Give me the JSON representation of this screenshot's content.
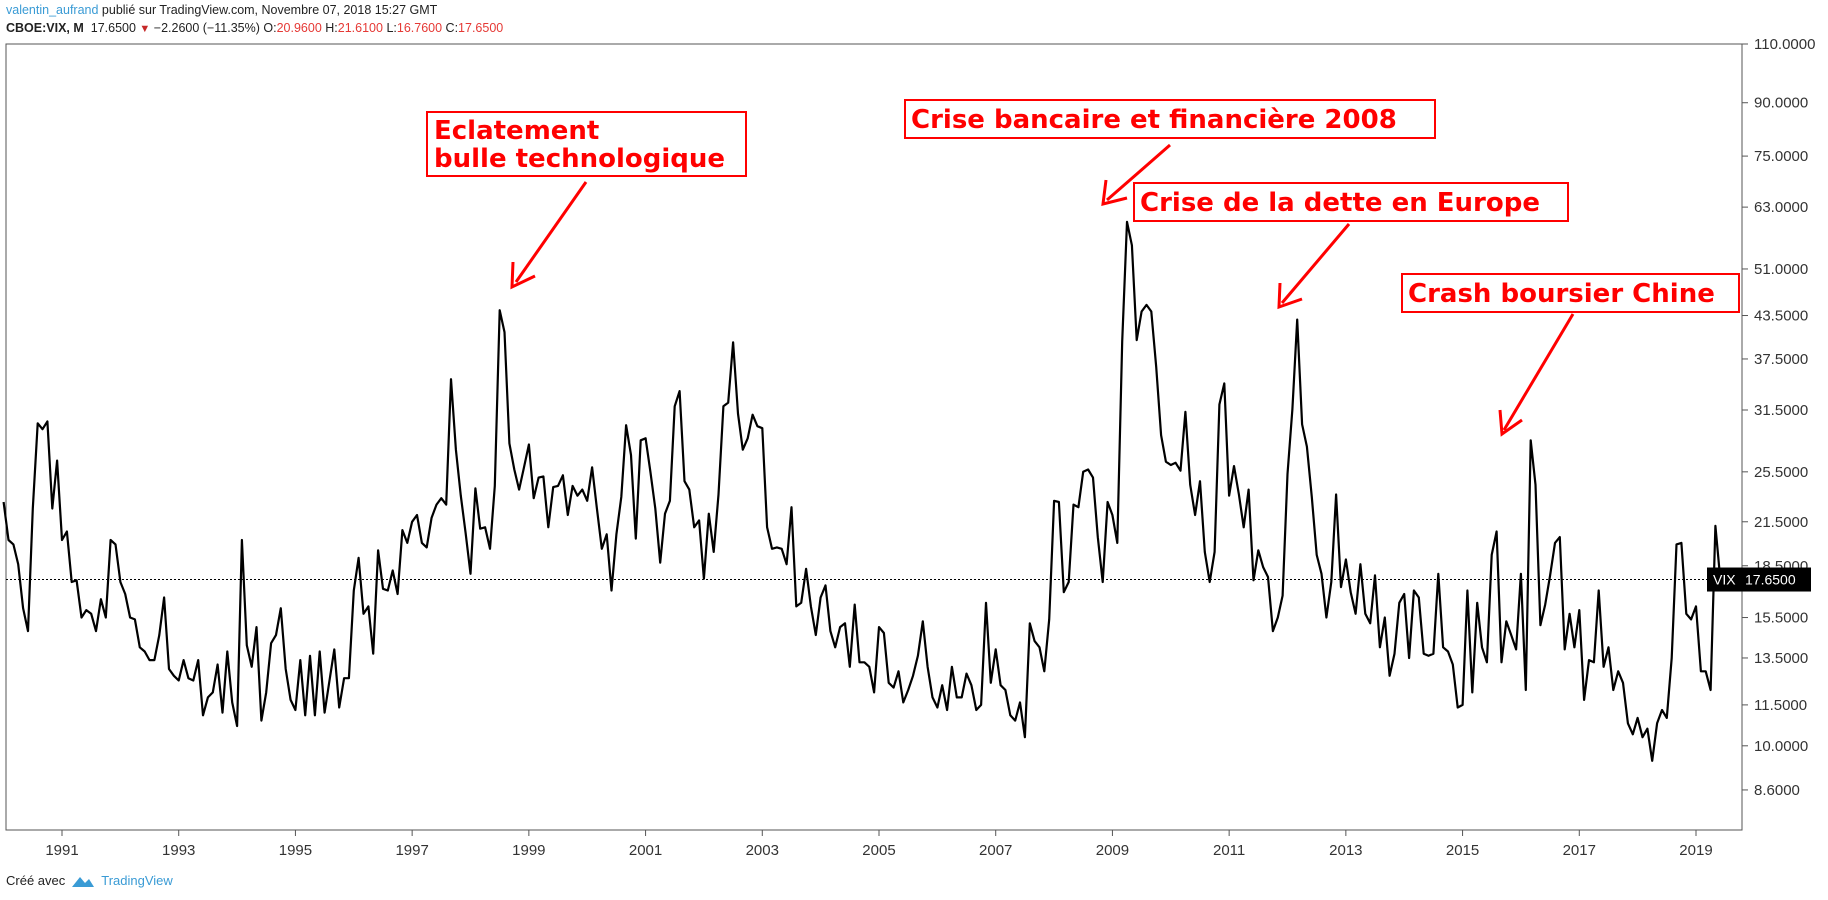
{
  "header": {
    "user": "valentin_aufrand",
    "published_text": "publié sur TradingView.com, Novembre 07, 2018 15:27 GMT",
    "symbol": "CBOE:VIX, M",
    "last": "17.6500",
    "change": "−2.2600 (−11.35%)",
    "o_label": "O:",
    "o_value": "20.9600",
    "h_label": "H:",
    "h_value": "21.6100",
    "l_label": "L:",
    "l_value": "16.7600",
    "c_label": "C:",
    "c_value": "17.6500"
  },
  "footer": {
    "created_with": "Créé avec",
    "brand": "TradingView"
  },
  "colors": {
    "line": "#000000",
    "annotation": "#ff0000",
    "user_link": "#3a9bd5",
    "down": "#c62828"
  },
  "chart_data": {
    "type": "line",
    "series": [
      {
        "name": "VIX",
        "interval": "monthly",
        "start": "1990-01",
        "values": [
          23.0,
          20.2,
          19.9,
          18.6,
          16.0,
          14.8,
          22.5,
          30.1,
          29.5,
          30.3,
          22.5,
          26.5,
          20.2,
          20.8,
          17.5,
          17.6,
          15.5,
          15.9,
          15.7,
          14.8,
          16.5,
          15.5,
          20.2,
          19.9,
          17.5,
          16.8,
          15.5,
          15.4,
          14.0,
          13.8,
          13.4,
          13.4,
          14.6,
          16.6,
          13.0,
          12.7,
          12.5,
          13.4,
          12.6,
          12.5,
          13.4,
          11.1,
          11.8,
          12.0,
          13.2,
          11.2,
          13.8,
          11.6,
          10.7,
          20.2,
          14.1,
          13.1,
          15.0,
          10.9,
          12.0,
          14.2,
          14.6,
          16.0,
          13.0,
          11.7,
          11.3,
          13.4,
          11.1,
          13.6,
          11.1,
          13.8,
          11.2,
          12.5,
          13.9,
          11.4,
          12.6,
          12.6,
          17.0,
          19.0,
          15.7,
          16.1,
          13.7,
          19.5,
          17.1,
          17.0,
          18.2,
          16.8,
          20.9,
          20.0,
          21.5,
          22.0,
          20.0,
          19.7,
          21.8,
          22.8,
          23.3,
          22.8,
          35.0,
          27.5,
          23.5,
          20.7,
          18.0,
          24.1,
          21.0,
          21.1,
          19.6,
          24.3,
          44.3,
          41.1,
          28.1,
          25.7,
          24.0,
          25.9,
          28.0,
          23.3,
          25.0,
          25.1,
          21.1,
          24.2,
          24.3,
          25.2,
          22.0,
          24.3,
          23.5,
          24.0,
          23.1,
          25.9,
          22.5,
          19.6,
          20.6,
          17.0,
          20.6,
          23.4,
          29.9,
          27.0,
          20.3,
          28.4,
          28.6,
          25.5,
          22.5,
          18.7,
          22.1,
          23.1,
          31.9,
          33.6,
          24.7,
          24.0,
          21.1,
          21.6,
          17.7,
          22.1,
          19.4,
          23.6,
          31.9,
          32.3,
          39.7,
          31.1,
          27.5,
          28.6,
          31.0,
          29.8,
          29.6,
          21.1,
          19.6,
          19.7,
          19.6,
          18.6,
          22.6,
          16.1,
          16.3,
          18.3,
          16.1,
          14.6,
          16.6,
          17.3,
          14.8,
          14.0,
          15.0,
          15.2,
          13.1,
          16.2,
          13.3,
          13.3,
          13.1,
          12.0,
          15.0,
          14.7,
          12.4,
          12.2,
          12.9,
          11.6,
          12.1,
          12.7,
          13.6,
          15.3,
          13.1,
          11.8,
          11.4,
          12.3,
          11.3,
          13.1,
          11.8,
          11.8,
          12.8,
          12.3,
          11.3,
          11.5,
          16.3,
          12.4,
          13.9,
          12.3,
          12.1,
          11.1,
          10.9,
          11.6,
          10.3,
          15.2,
          14.3,
          14.0,
          12.9,
          15.4,
          23.1,
          23.0,
          16.9,
          17.5,
          22.8,
          22.6,
          25.5,
          25.7,
          25.0,
          20.4,
          17.5,
          23.0,
          22.0,
          20.0,
          39.8,
          59.9,
          55.3,
          40.0,
          44.1,
          45.1,
          44.1,
          36.5,
          28.9,
          26.4,
          26.1,
          26.3,
          25.6,
          31.3,
          24.4,
          22.0,
          24.7,
          19.4,
          17.5,
          19.4,
          32.1,
          34.5,
          23.5,
          26.0,
          23.6,
          21.1,
          24.0,
          17.6,
          19.5,
          18.4,
          17.8,
          14.8,
          15.5,
          16.7,
          25.3,
          31.6,
          42.9,
          30.0,
          27.8,
          23.4,
          19.2,
          18.0,
          15.5,
          17.5,
          23.6,
          17.2,
          18.9,
          16.9,
          15.7,
          18.6,
          15.7,
          15.2,
          17.9,
          14.0,
          15.5,
          12.7,
          13.7,
          16.3,
          16.8,
          13.5,
          17.0,
          16.6,
          13.7,
          13.6,
          13.7,
          18.0,
          14.0,
          13.8,
          13.2,
          11.4,
          11.5,
          17.0,
          12.0,
          16.3,
          14.0,
          13.3,
          19.2,
          20.8,
          13.3,
          15.3,
          14.6,
          13.9,
          18.0,
          12.1,
          28.4,
          24.4,
          15.1,
          16.2,
          17.9,
          20.0,
          20.4,
          13.9,
          15.7,
          14.0,
          15.9,
          11.7,
          13.4,
          13.3,
          17.0,
          13.1,
          14.0,
          12.1,
          12.9,
          12.4,
          10.8,
          10.4,
          11.0,
          10.3,
          10.6,
          9.5,
          10.8,
          11.3,
          11.0,
          13.5,
          19.9,
          20.0,
          15.7,
          15.4,
          16.1,
          12.9,
          12.9,
          12.1,
          21.2,
          17.65
        ]
      }
    ],
    "current_value": 17.65,
    "price_label": "VIX",
    "price_label_value": "17.6500",
    "y_scale": "log",
    "ylim": [
      7.5,
      110
    ],
    "y_ticks": [
      "110.0000",
      "90.0000",
      "75.0000",
      "63.0000",
      "51.0000",
      "43.5000",
      "37.5000",
      "31.5000",
      "25.5000",
      "21.5000",
      "18.5000",
      "15.5000",
      "13.5000",
      "11.5000",
      "10.0000",
      "8.6000"
    ],
    "x_ticks": [
      "1991",
      "1993",
      "1995",
      "1997",
      "1999",
      "2001",
      "2003",
      "2005",
      "2007",
      "2009",
      "2011",
      "2013",
      "2015",
      "2017",
      "2019"
    ],
    "grid": false,
    "annotations": [
      {
        "lines": [
          "Eclatement",
          "bulle technologique"
        ]
      },
      {
        "lines": [
          "Crise bancaire et financière 2008"
        ]
      },
      {
        "lines": [
          "Crise de la dette en Europe"
        ]
      },
      {
        "lines": [
          "Crash boursier Chine"
        ]
      }
    ]
  }
}
